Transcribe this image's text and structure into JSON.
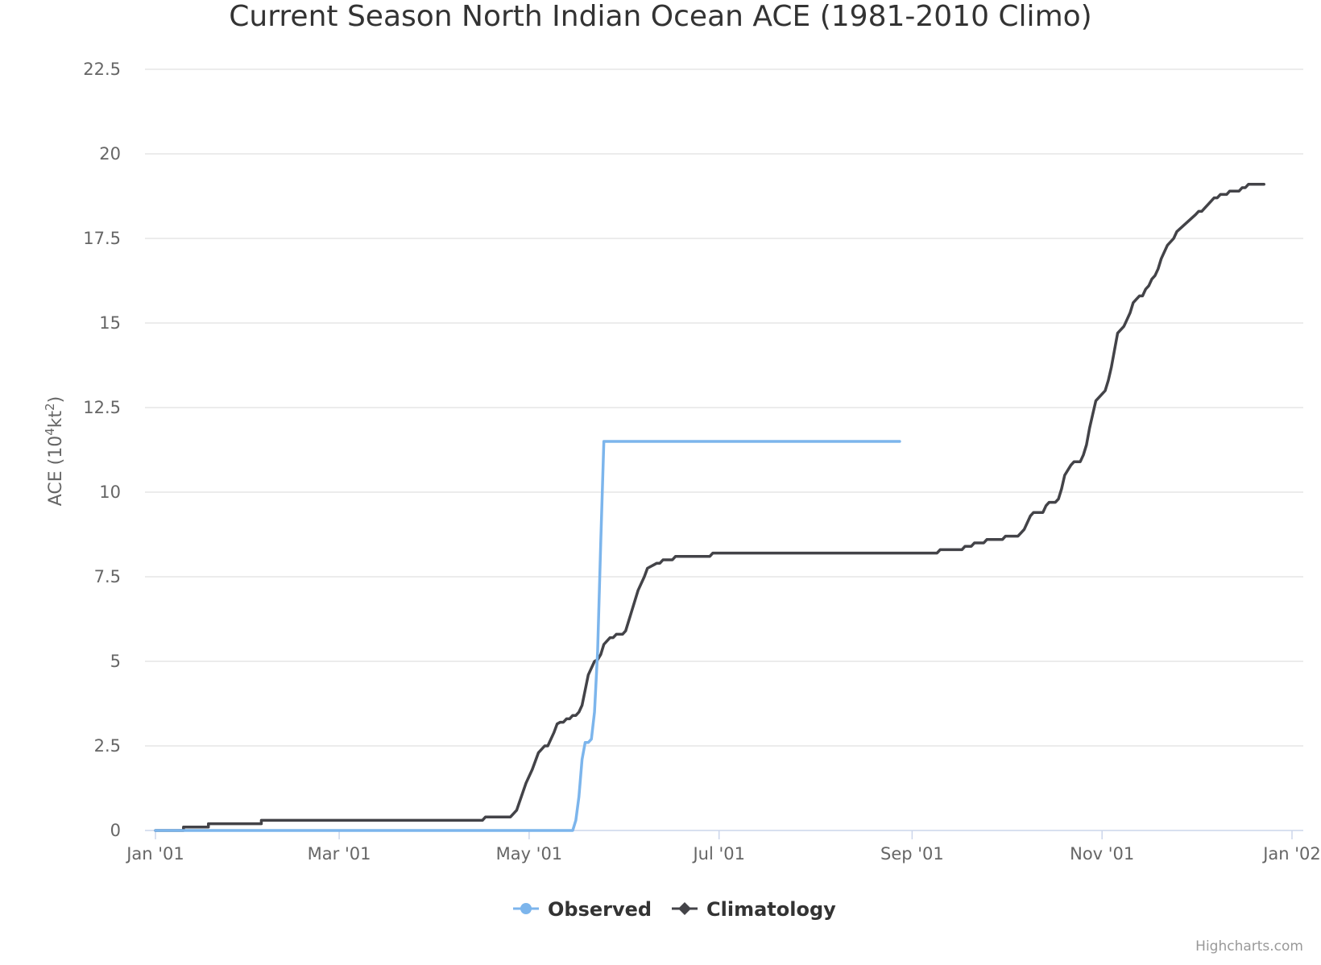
{
  "chart_data": {
    "type": "line",
    "title": "Current Season North Indian Ocean ACE (1981-2010 Climo)",
    "ylabel": "ACE (10",
    "ylabel_sup1": "4",
    "ylabel_mid": "kt",
    "ylabel_sup2": "2",
    "ylabel_end": ")",
    "ylim": [
      0,
      22.5
    ],
    "yticks": [
      "0",
      "2.5",
      "5",
      "7.5",
      "10",
      "12.5",
      "15",
      "17.5",
      "20",
      "22.5"
    ],
    "xlim": [
      "2001-01-01",
      "2002-01-01"
    ],
    "xticks": [
      {
        "date": "2001-01-01",
        "label": "Jan '01"
      },
      {
        "date": "2001-03-01",
        "label": "Mar '01"
      },
      {
        "date": "2001-05-01",
        "label": "May '01"
      },
      {
        "date": "2001-07-01",
        "label": "Jul '01"
      },
      {
        "date": "2001-09-01",
        "label": "Sep '01"
      },
      {
        "date": "2001-11-01",
        "label": "Nov '01"
      },
      {
        "date": "2002-01-01",
        "label": "Jan '02"
      }
    ],
    "grid": true,
    "legend_position": "bottom-center",
    "series": [
      {
        "name": "Observed",
        "color": "#7cb5ec",
        "marker": "circle",
        "points": [
          [
            "2001-01-01",
            0
          ],
          [
            "2001-05-15",
            0
          ],
          [
            "2001-05-16",
            0.3
          ],
          [
            "2001-05-17",
            1.0
          ],
          [
            "2001-05-18",
            2.1
          ],
          [
            "2001-05-19",
            2.6
          ],
          [
            "2001-05-20",
            2.6
          ],
          [
            "2001-05-21",
            2.7
          ],
          [
            "2001-05-22",
            3.5
          ],
          [
            "2001-05-23",
            5.3
          ],
          [
            "2001-05-24",
            8.5
          ],
          [
            "2001-05-25",
            11.5
          ],
          [
            "2001-08-28",
            11.5
          ]
        ]
      },
      {
        "name": "Climatology",
        "color": "#434348",
        "marker": "diamond",
        "points": [
          [
            "2001-01-01",
            0
          ],
          [
            "2001-01-10",
            0
          ],
          [
            "2001-01-10",
            0.1
          ],
          [
            "2001-01-18",
            0.1
          ],
          [
            "2001-01-18",
            0.2
          ],
          [
            "2001-02-04",
            0.2
          ],
          [
            "2001-02-04",
            0.3
          ],
          [
            "2001-04-16",
            0.3
          ],
          [
            "2001-04-17",
            0.4
          ],
          [
            "2001-04-25",
            0.4
          ],
          [
            "2001-04-27",
            0.6
          ],
          [
            "2001-04-30",
            1.4
          ],
          [
            "2001-05-02",
            1.8
          ],
          [
            "2001-05-04",
            2.3
          ],
          [
            "2001-05-06",
            2.5
          ],
          [
            "2001-05-07",
            2.5
          ],
          [
            "2001-05-09",
            2.9
          ],
          [
            "2001-05-10",
            3.15
          ],
          [
            "2001-05-11",
            3.2
          ],
          [
            "2001-05-12",
            3.2
          ],
          [
            "2001-05-13",
            3.3
          ],
          [
            "2001-05-14",
            3.3
          ],
          [
            "2001-05-15",
            3.4
          ],
          [
            "2001-05-16",
            3.4
          ],
          [
            "2001-05-17",
            3.5
          ],
          [
            "2001-05-18",
            3.7
          ],
          [
            "2001-05-20",
            4.6
          ],
          [
            "2001-05-22",
            5.0
          ],
          [
            "2001-05-23",
            5.05
          ],
          [
            "2001-05-24",
            5.2
          ],
          [
            "2001-05-25",
            5.5
          ],
          [
            "2001-05-27",
            5.7
          ],
          [
            "2001-05-28",
            5.7
          ],
          [
            "2001-05-29",
            5.8
          ],
          [
            "2001-05-31",
            5.8
          ],
          [
            "2001-06-01",
            5.9
          ],
          [
            "2001-06-03",
            6.5
          ],
          [
            "2001-06-05",
            7.1
          ],
          [
            "2001-06-07",
            7.5
          ],
          [
            "2001-06-08",
            7.75
          ],
          [
            "2001-06-09",
            7.8
          ],
          [
            "2001-06-10",
            7.85
          ],
          [
            "2001-06-11",
            7.9
          ],
          [
            "2001-06-12",
            7.9
          ],
          [
            "2001-06-13",
            8.0
          ],
          [
            "2001-06-16",
            8.0
          ],
          [
            "2001-06-17",
            8.1
          ],
          [
            "2001-06-28",
            8.1
          ],
          [
            "2001-06-29",
            8.2
          ],
          [
            "2001-09-09",
            8.2
          ],
          [
            "2001-09-10",
            8.3
          ],
          [
            "2001-09-17",
            8.3
          ],
          [
            "2001-09-18",
            8.4
          ],
          [
            "2001-09-20",
            8.4
          ],
          [
            "2001-09-21",
            8.5
          ],
          [
            "2001-09-24",
            8.5
          ],
          [
            "2001-09-25",
            8.6
          ],
          [
            "2001-09-30",
            8.6
          ],
          [
            "2001-10-01",
            8.7
          ],
          [
            "2001-10-05",
            8.7
          ],
          [
            "2001-10-06",
            8.8
          ],
          [
            "2001-10-07",
            8.9
          ],
          [
            "2001-10-09",
            9.3
          ],
          [
            "2001-10-10",
            9.4
          ],
          [
            "2001-10-13",
            9.4
          ],
          [
            "2001-10-14",
            9.6
          ],
          [
            "2001-10-15",
            9.7
          ],
          [
            "2001-10-17",
            9.7
          ],
          [
            "2001-10-18",
            9.8
          ],
          [
            "2001-10-19",
            10.1
          ],
          [
            "2001-10-20",
            10.5
          ],
          [
            "2001-10-22",
            10.8
          ],
          [
            "2001-10-23",
            10.9
          ],
          [
            "2001-10-25",
            10.9
          ],
          [
            "2001-10-26",
            11.1
          ],
          [
            "2001-10-27",
            11.4
          ],
          [
            "2001-10-28",
            11.9
          ],
          [
            "2001-10-29",
            12.3
          ],
          [
            "2001-10-30",
            12.7
          ],
          [
            "2001-11-01",
            12.9
          ],
          [
            "2001-11-02",
            13.0
          ],
          [
            "2001-11-03",
            13.3
          ],
          [
            "2001-11-04",
            13.7
          ],
          [
            "2001-11-05",
            14.2
          ],
          [
            "2001-11-06",
            14.7
          ],
          [
            "2001-11-08",
            14.9
          ],
          [
            "2001-11-09",
            15.1
          ],
          [
            "2001-11-10",
            15.3
          ],
          [
            "2001-11-11",
            15.6
          ],
          [
            "2001-11-12",
            15.7
          ],
          [
            "2001-11-13",
            15.8
          ],
          [
            "2001-11-14",
            15.8
          ],
          [
            "2001-11-15",
            16.0
          ],
          [
            "2001-11-16",
            16.1
          ],
          [
            "2001-11-17",
            16.3
          ],
          [
            "2001-11-18",
            16.4
          ],
          [
            "2001-11-19",
            16.6
          ],
          [
            "2001-11-20",
            16.9
          ],
          [
            "2001-11-22",
            17.3
          ],
          [
            "2001-11-24",
            17.5
          ],
          [
            "2001-11-25",
            17.7
          ],
          [
            "2001-11-28",
            17.95
          ],
          [
            "2001-12-01",
            18.2
          ],
          [
            "2001-12-02",
            18.3
          ],
          [
            "2001-12-03",
            18.3
          ],
          [
            "2001-12-04",
            18.4
          ],
          [
            "2001-12-06",
            18.6
          ],
          [
            "2001-12-07",
            18.7
          ],
          [
            "2001-12-08",
            18.7
          ],
          [
            "2001-12-09",
            18.8
          ],
          [
            "2001-12-11",
            18.8
          ],
          [
            "2001-12-12",
            18.9
          ],
          [
            "2001-12-15",
            18.9
          ],
          [
            "2001-12-16",
            19.0
          ],
          [
            "2001-12-17",
            19.0
          ],
          [
            "2001-12-18",
            19.1
          ],
          [
            "2001-12-23",
            19.1
          ]
        ]
      }
    ],
    "credits": "Highcharts.com"
  }
}
